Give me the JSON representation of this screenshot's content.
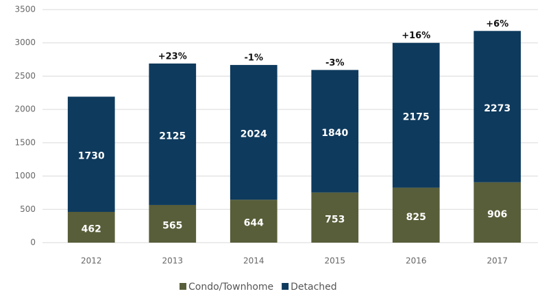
{
  "chart_data": {
    "type": "stacked_bar",
    "categories": [
      "2012",
      "2013",
      "2014",
      "2015",
      "2016",
      "2017"
    ],
    "series": [
      {
        "name": "Condo/Townhome",
        "color": "#585e39",
        "values": [
          462,
          565,
          644,
          753,
          825,
          906
        ]
      },
      {
        "name": "Detached",
        "color": "#0e3a5d",
        "values": [
          1730,
          2125,
          2024,
          1840,
          2175,
          2273
        ]
      }
    ],
    "annotations": [
      null,
      "+23%",
      "-1%",
      "-3%",
      "+16%",
      "+6%"
    ],
    "ylim": [
      0,
      3500
    ],
    "yticks": [
      0,
      500,
      1000,
      1500,
      2000,
      2500,
      3000,
      3500
    ],
    "grid": true,
    "legend": "bottom"
  }
}
